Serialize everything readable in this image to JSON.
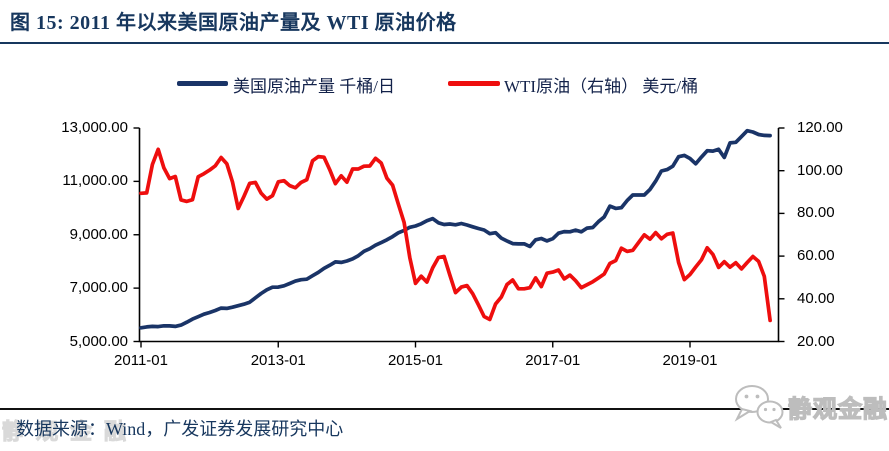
{
  "figure": {
    "title": "图 15:  2011 年以来美国原油产量及 WTI 原油价格",
    "source_note": "数据来源：Wind，广发证券发展研究中心",
    "watermark": "静观金融"
  },
  "chart_data": {
    "type": "line",
    "x_start": "2011-01",
    "x_end": "2020-03",
    "x_freq": "monthly",
    "grid": "off",
    "legend_position": "top",
    "x_tick_labels": [
      "2011-01",
      "2013-01",
      "2015-01",
      "2017-01",
      "2019-01"
    ],
    "x_tick_month_indices": [
      0,
      24,
      48,
      72,
      96
    ],
    "left_axis": {
      "min": 5000,
      "max": 13000,
      "tick_values": [
        13000,
        11000,
        9000,
        7000,
        5000
      ],
      "tick_labels": [
        "13,000.00",
        "11,000.00",
        "9,000.00",
        "7,000.00",
        "5,000.00"
      ]
    },
    "right_axis": {
      "min": 20,
      "max": 120,
      "tick_values": [
        120,
        100,
        80,
        60,
        40,
        20
      ],
      "tick_labels": [
        "120.00",
        "100.00",
        "80.00",
        "60.00",
        "40.00",
        "20.00"
      ]
    },
    "series": [
      {
        "name": "美国原油产量 千桶/日",
        "axis": "left",
        "color": "#1A3467",
        "values": [
          5512,
          5546,
          5565,
          5560,
          5588,
          5583,
          5565,
          5613,
          5722,
          5840,
          5928,
          6022,
          6085,
          6162,
          6253,
          6240,
          6285,
          6341,
          6397,
          6474,
          6636,
          6797,
          6936,
          7033,
          7040,
          7086,
          7172,
          7264,
          7317,
          7336,
          7465,
          7588,
          7739,
          7856,
          7981,
          7963,
          8016,
          8095,
          8215,
          8378,
          8479,
          8608,
          8706,
          8810,
          8930,
          9074,
          9162,
          9278,
          9327,
          9411,
          9526,
          9605,
          9448,
          9383,
          9404,
          9373,
          9420,
          9366,
          9299,
          9235,
          9179,
          9038,
          9077,
          8874,
          8765,
          8670,
          8656,
          8662,
          8560,
          8811,
          8860,
          8770,
          8853,
          9057,
          9119,
          9111,
          9176,
          9110,
          9249,
          9271,
          9492,
          9669,
          10074,
          9987,
          10013,
          10281,
          10488,
          10489,
          10488,
          10698,
          11009,
          11389,
          11441,
          11569,
          11926,
          11975,
          11856,
          11660,
          11911,
          12149,
          12135,
          12200,
          11899,
          12441,
          12463,
          12679,
          12900,
          12850,
          12755,
          12723,
          12716
        ]
      },
      {
        "name": "WTI原油（右轴） 美元/桶",
        "axis": "right",
        "color": "#EE0E0E",
        "values": [
          89.4,
          89.6,
          102.9,
          110.0,
          101.3,
          96.3,
          97.3,
          86.3,
          85.6,
          86.4,
          97.2,
          98.6,
          100.3,
          102.3,
          106.2,
          103.3,
          94.7,
          82.3,
          87.9,
          94.1,
          94.5,
          89.5,
          86.7,
          88.3,
          94.8,
          95.3,
          93.0,
          92.0,
          94.5,
          95.8,
          104.7,
          106.6,
          106.3,
          100.5,
          93.9,
          97.6,
          94.6,
          100.8,
          100.8,
          102.1,
          102.2,
          105.8,
          103.6,
          96.5,
          93.2,
          84.4,
          75.8,
          59.3,
          47.2,
          50.6,
          47.8,
          54.5,
          59.3,
          59.8,
          51.2,
          42.9,
          45.5,
          46.2,
          42.4,
          37.2,
          31.7,
          30.3,
          37.6,
          40.8,
          46.7,
          48.8,
          44.7,
          44.7,
          45.2,
          49.8,
          45.7,
          52.0,
          52.5,
          53.5,
          49.3,
          51.1,
          48.5,
          45.2,
          46.6,
          48.0,
          49.8,
          51.6,
          56.6,
          57.9,
          63.7,
          62.2,
          62.7,
          66.3,
          70.0,
          67.9,
          71.0,
          68.1,
          70.2,
          70.8,
          57.0,
          49.0,
          51.4,
          54.9,
          58.2,
          63.9,
          60.8,
          54.7,
          57.4,
          54.8,
          56.9,
          54.0,
          57.0,
          59.8,
          57.5,
          50.5,
          29.9
        ]
      }
    ]
  }
}
